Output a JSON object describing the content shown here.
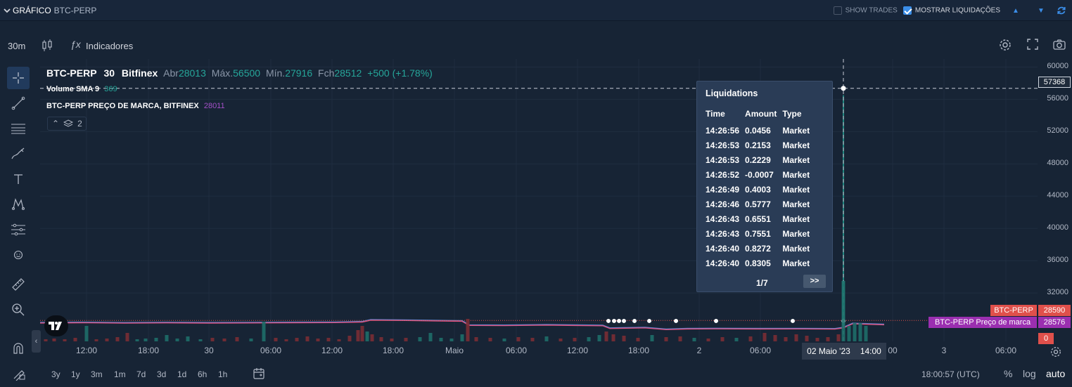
{
  "header": {
    "title": "GRÁFICO",
    "symbol": "BTC-PERP",
    "show_trades_label": "SHOW TRADES",
    "show_trades_checked": false,
    "show_liquidations_label": "MOSTRAR LIQUIDAÇÕES",
    "show_liquidations_checked": true,
    "collapse_up_icon": "triangle-up-icon",
    "collapse_down_icon": "triangle-down-icon",
    "refresh_icon": "refresh-icon"
  },
  "toolbar": {
    "interval": "30m",
    "indicators_label": "Indicadores"
  },
  "legend": {
    "symbol": "BTC-PERP",
    "interval": "30",
    "exchange": "Bitfinex",
    "open_label": "Abr",
    "open": "28013",
    "high_label": "Máx.",
    "high": "56500",
    "low_label": "Mín.",
    "low": "27916",
    "close_label": "Fch",
    "close": "28512",
    "change": "+500 (+1.78%)",
    "volume_label": "Volume SMA 9",
    "volume_value": "369",
    "mark_label": "BTC-PERP PREÇO DE MARCA, BITFINEX",
    "mark_value": "28011",
    "collapsed_count": "2"
  },
  "price_scale": {
    "ticks": [
      "60000",
      "56000",
      "52000",
      "48000",
      "44000",
      "40000",
      "36000",
      "32000"
    ],
    "crosshair_value": "57368",
    "last_price_label": "BTC-PERP",
    "last_price_value": "28590",
    "mark_price_label": "BTC-PERP Preço de marca",
    "mark_price_value": "28576",
    "volume_zero": "0"
  },
  "time_axis": {
    "ticks": [
      "12:00",
      "18:00",
      "30",
      "06:00",
      "12:00",
      "18:00",
      "Maio",
      "06:00",
      "12:00",
      "18:00",
      "2",
      "06:00",
      "00",
      "3",
      "06:00"
    ],
    "crosshair_date": "02 Maio '23",
    "crosshair_time": "14:00"
  },
  "tooltip": {
    "title": "Liquidations",
    "columns": [
      "Time",
      "Amount",
      "Type"
    ],
    "rows": [
      [
        "14:26:56",
        "0.0456",
        "Market"
      ],
      [
        "14:26:53",
        "0.2153",
        "Market"
      ],
      [
        "14:26:53",
        "0.2229",
        "Market"
      ],
      [
        "14:26:52",
        "-0.0007",
        "Market"
      ],
      [
        "14:26:49",
        "0.4003",
        "Market"
      ],
      [
        "14:26:46",
        "0.5777",
        "Market"
      ],
      [
        "14:26:43",
        "0.6551",
        "Market"
      ],
      [
        "14:26:43",
        "0.7551",
        "Market"
      ],
      [
        "14:26:40",
        "0.8272",
        "Market"
      ],
      [
        "14:26:40",
        "0.8305",
        "Market"
      ]
    ],
    "pager": "1/7",
    "next_label": ">>"
  },
  "bottom": {
    "ranges": [
      "3y",
      "1y",
      "3m",
      "1m",
      "7d",
      "3d",
      "1d",
      "6h",
      "1h"
    ],
    "clock": "18:00:57 (UTC)",
    "percent_label": "%",
    "log_label": "log",
    "auto_label": "auto"
  },
  "colors": {
    "up": "#26a69a",
    "down": "#ef5350",
    "mark_line": "#a450c8",
    "price_line": "#4a90e2",
    "accent": "#3b8ee8"
  },
  "chart_data": {
    "type": "line",
    "y_range": [
      26000,
      61000
    ],
    "price_min": 27916,
    "price_max": 56500,
    "liquidation_markers": 10
  }
}
